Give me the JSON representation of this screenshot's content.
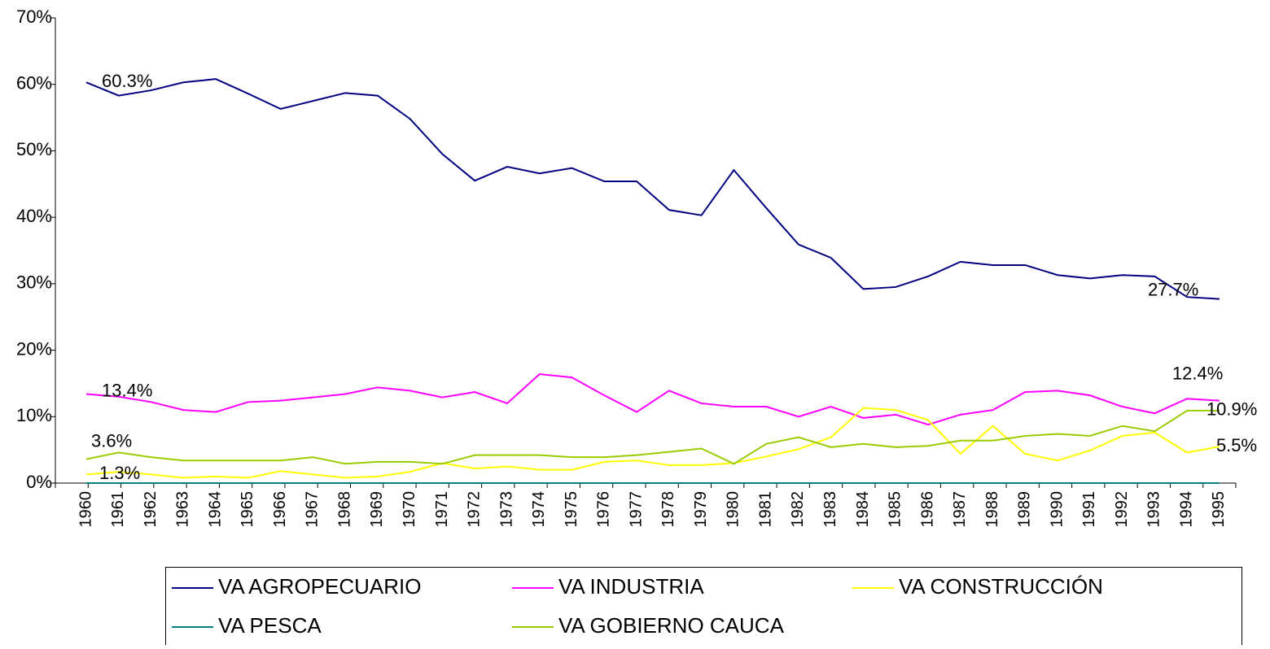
{
  "chart_data": {
    "type": "line",
    "categories": [
      "1960",
      "1961",
      "1962",
      "1963",
      "1964",
      "1965",
      "1966",
      "1967",
      "1968",
      "1969",
      "1970",
      "1971",
      "1972",
      "1973",
      "1974",
      "1975",
      "1976",
      "1977",
      "1978",
      "1979",
      "1980",
      "1981",
      "1982",
      "1983",
      "1984",
      "1985",
      "1986",
      "1987",
      "1988",
      "1989",
      "1990",
      "1991",
      "1992",
      "1993",
      "1994",
      "1995"
    ],
    "series": [
      {
        "name": "VA AGROPECUARIO",
        "color": "#000080",
        "values": [
          60.3,
          58.3,
          59.1,
          60.3,
          60.8,
          58.6,
          56.3,
          57.5,
          58.7,
          58.3,
          54.8,
          49.5,
          45.5,
          47.6,
          46.6,
          47.4,
          45.4,
          45.4,
          41.1,
          40.3,
          47.1,
          41.4,
          35.9,
          33.9,
          29.2,
          29.5,
          31.1,
          33.3,
          32.8,
          32.8,
          31.3,
          30.8,
          31.3,
          31.1,
          28.0,
          27.7
        ],
        "value_labels": [
          "60.3%",
          null,
          null,
          null,
          null,
          null,
          null,
          null,
          null,
          null,
          null,
          null,
          null,
          null,
          null,
          null,
          null,
          null,
          null,
          null,
          null,
          null,
          null,
          null,
          null,
          null,
          null,
          null,
          null,
          null,
          null,
          null,
          null,
          null,
          null,
          "27.7%"
        ]
      },
      {
        "name": "VA INDUSTRIA",
        "color": "#ff00ff",
        "values": [
          13.4,
          13.0,
          12.2,
          11.0,
          10.7,
          12.2,
          12.4,
          12.9,
          13.4,
          14.4,
          13.9,
          12.9,
          13.7,
          12.0,
          16.4,
          15.9,
          13.2,
          10.7,
          13.9,
          12.0,
          11.5,
          11.5,
          10.0,
          11.5,
          9.8,
          10.3,
          8.8,
          10.3,
          11.0,
          13.7,
          13.9,
          13.2,
          11.5,
          10.5,
          12.7,
          12.4
        ],
        "value_labels": [
          "13.4%",
          null,
          null,
          null,
          null,
          null,
          null,
          null,
          null,
          null,
          null,
          null,
          null,
          null,
          null,
          null,
          null,
          null,
          null,
          null,
          null,
          null,
          null,
          null,
          null,
          null,
          null,
          null,
          null,
          null,
          null,
          null,
          null,
          null,
          null,
          "12.4%"
        ]
      },
      {
        "name": "VA CONSTRUCCIÓN",
        "color": "#ffff00",
        "values": [
          1.3,
          1.7,
          1.3,
          0.8,
          1.0,
          0.8,
          1.8,
          1.3,
          0.8,
          1.0,
          1.7,
          3.0,
          2.2,
          2.5,
          2.0,
          2.0,
          3.2,
          3.4,
          2.7,
          2.7,
          3.0,
          4.0,
          5.1,
          6.9,
          11.3,
          11.0,
          9.5,
          4.4,
          8.6,
          4.4,
          3.4,
          4.9,
          7.1,
          7.6,
          4.6,
          5.5
        ],
        "value_labels": [
          "1.3%",
          null,
          null,
          null,
          null,
          null,
          null,
          null,
          null,
          null,
          null,
          null,
          null,
          null,
          null,
          null,
          null,
          null,
          null,
          null,
          null,
          null,
          null,
          null,
          null,
          null,
          null,
          null,
          null,
          null,
          null,
          null,
          null,
          null,
          null,
          "5.5%"
        ]
      },
      {
        "name": "VA PESCA",
        "color": "#008080",
        "values": [
          0,
          0,
          0,
          0,
          0,
          0,
          0,
          0,
          0,
          0,
          0,
          0,
          0,
          0,
          0,
          0,
          0,
          0,
          0,
          0,
          0,
          0,
          0,
          0,
          0,
          0,
          0,
          0,
          0,
          0,
          0,
          0,
          0,
          0,
          0,
          0
        ]
      },
      {
        "name": "VA GOBIERNO CAUCA",
        "color": "#99cc00",
        "values": [
          3.6,
          4.6,
          3.9,
          3.4,
          3.4,
          3.4,
          3.4,
          3.9,
          2.9,
          3.2,
          3.2,
          2.9,
          4.2,
          4.2,
          4.2,
          3.9,
          3.9,
          4.2,
          4.7,
          5.2,
          2.9,
          5.9,
          6.9,
          5.4,
          5.9,
          5.4,
          5.6,
          6.4,
          6.4,
          7.1,
          7.4,
          7.1,
          8.6,
          7.8,
          10.9,
          10.9
        ],
        "value_labels": [
          "3.6%",
          null,
          null,
          null,
          null,
          null,
          null,
          null,
          null,
          null,
          null,
          null,
          null,
          null,
          null,
          null,
          null,
          null,
          null,
          null,
          null,
          null,
          null,
          null,
          null,
          null,
          null,
          null,
          null,
          null,
          null,
          null,
          null,
          null,
          null,
          "10.9%"
        ]
      }
    ],
    "ylim": [
      0,
      70
    ],
    "yticks": [
      {
        "value": 0,
        "label": "0%"
      },
      {
        "value": 10,
        "label": "10%"
      },
      {
        "value": 20,
        "label": "20%"
      },
      {
        "value": 30,
        "label": "30%"
      },
      {
        "value": 40,
        "label": "40%"
      },
      {
        "value": 50,
        "label": "50%"
      },
      {
        "value": 60,
        "label": "60%"
      },
      {
        "value": 70,
        "label": "70%"
      }
    ],
    "grid": false,
    "legend": "bottom"
  }
}
